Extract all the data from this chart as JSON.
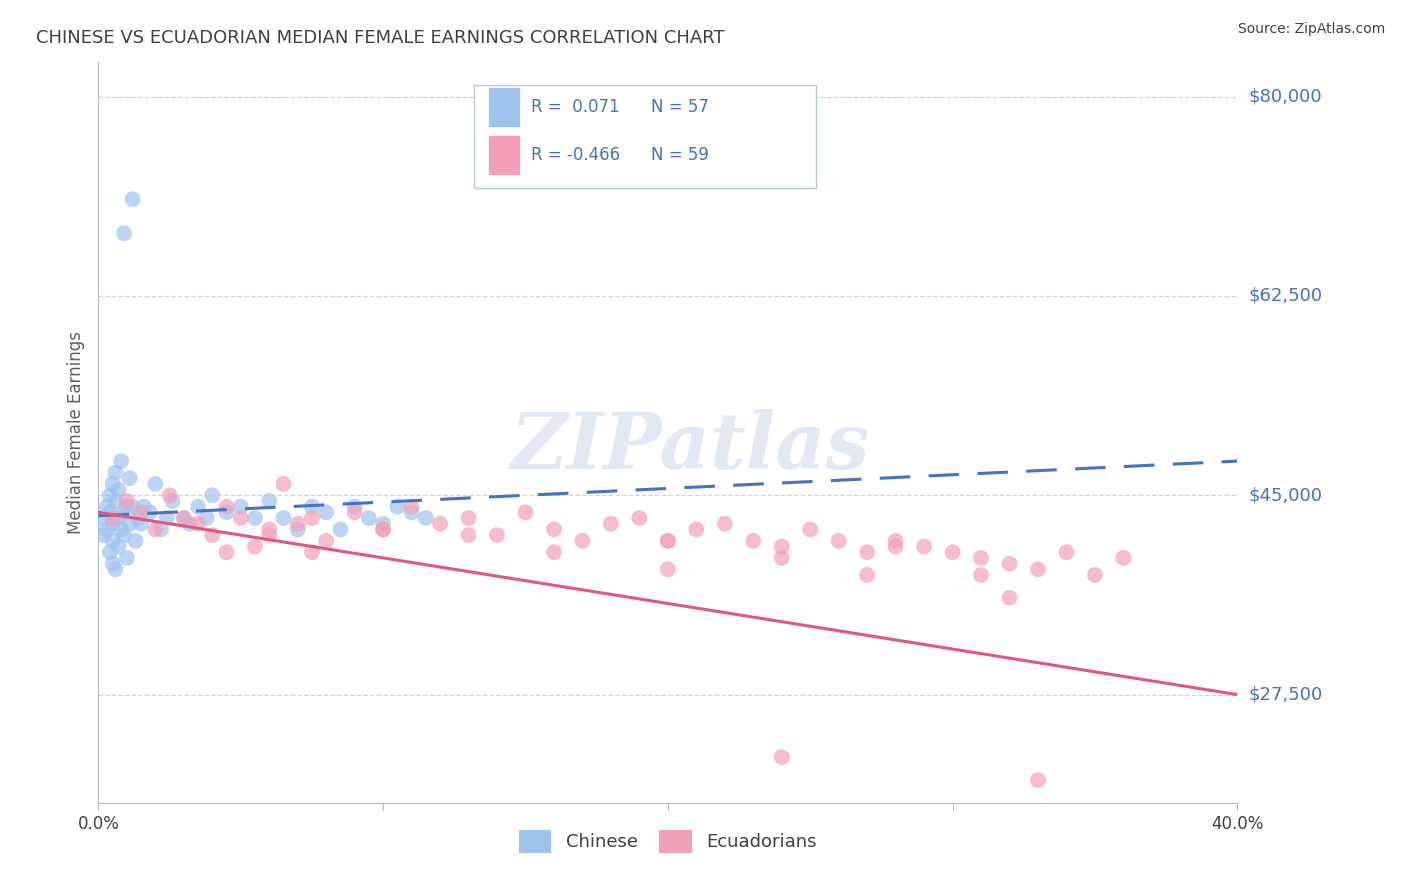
{
  "title": "CHINESE VS ECUADORIAN MEDIAN FEMALE EARNINGS CORRELATION CHART",
  "source": "Source: ZipAtlas.com",
  "ylabel": "Median Female Earnings",
  "x_min": 0.0,
  "x_max": 0.4,
  "y_min": 18000,
  "y_max": 83000,
  "yticks": [
    27500,
    45000,
    62500,
    80000
  ],
  "ytick_labels": [
    "$27,500",
    "$45,000",
    "$62,500",
    "$80,000"
  ],
  "xticks": [
    0.0,
    0.1,
    0.2,
    0.3,
    0.4
  ],
  "xtick_labels": [
    "0.0%",
    "",
    "",
    "",
    "40.0%"
  ],
  "chinese_color": "#a0c4f0",
  "ecuadorian_color": "#f4a0b8",
  "trend_chinese_color": "#4472c4",
  "trend_ecuadorian_color": "#e05880",
  "watermark": "ZIPatlas",
  "background_color": "#ffffff",
  "grid_color": "#c8d4e8",
  "title_color": "#404040",
  "right_label_color": "#4472c4",
  "source_color": "#404040",
  "ylabel_color": "#606060",
  "ch_trend_x0": 0.0,
  "ch_trend_y0": 43200,
  "ch_trend_x1": 0.4,
  "ch_trend_y1": 48000,
  "ec_trend_x0": 0.0,
  "ec_trend_y0": 43500,
  "ec_trend_x1": 0.4,
  "ec_trend_y1": 27500,
  "legend_r1": "R =  0.071",
  "legend_n1": "N = 57",
  "legend_r2": "R = -0.466",
  "legend_n2": "N = 59",
  "legend_label1": "Chinese",
  "legend_label2": "Ecuadorians",
  "chinese_x": [
    0.001,
    0.002,
    0.003,
    0.003,
    0.004,
    0.004,
    0.004,
    0.005,
    0.005,
    0.005,
    0.005,
    0.006,
    0.006,
    0.006,
    0.007,
    0.007,
    0.007,
    0.008,
    0.008,
    0.009,
    0.009,
    0.01,
    0.01,
    0.011,
    0.011,
    0.012,
    0.013,
    0.014,
    0.015,
    0.016,
    0.018,
    0.02,
    0.022,
    0.024,
    0.026,
    0.03,
    0.032,
    0.035,
    0.038,
    0.04,
    0.045,
    0.05,
    0.055,
    0.06,
    0.065,
    0.07,
    0.075,
    0.08,
    0.085,
    0.09,
    0.095,
    0.1,
    0.105,
    0.11,
    0.115,
    0.012,
    0.009
  ],
  "chinese_y": [
    43000,
    41500,
    42000,
    44000,
    43500,
    40000,
    45000,
    42500,
    39000,
    46000,
    41000,
    44500,
    38500,
    47000,
    43000,
    40500,
    45500,
    42000,
    48000,
    41500,
    43500,
    44000,
    39500,
    46500,
    42500,
    44000,
    41000,
    43000,
    42500,
    44000,
    43500,
    46000,
    42000,
    43000,
    44500,
    43000,
    42500,
    44000,
    43000,
    45000,
    43500,
    44000,
    43000,
    44500,
    43000,
    42000,
    44000,
    43500,
    42000,
    44000,
    43000,
    42500,
    44000,
    43500,
    43000,
    71000,
    68000
  ],
  "ecuadorian_x": [
    0.005,
    0.01,
    0.015,
    0.02,
    0.025,
    0.03,
    0.035,
    0.04,
    0.045,
    0.05,
    0.055,
    0.06,
    0.065,
    0.07,
    0.075,
    0.08,
    0.09,
    0.1,
    0.11,
    0.12,
    0.13,
    0.14,
    0.15,
    0.16,
    0.17,
    0.18,
    0.19,
    0.2,
    0.21,
    0.22,
    0.23,
    0.24,
    0.25,
    0.26,
    0.27,
    0.28,
    0.29,
    0.3,
    0.31,
    0.32,
    0.33,
    0.34,
    0.35,
    0.36,
    0.045,
    0.06,
    0.075,
    0.1,
    0.13,
    0.16,
    0.2,
    0.24,
    0.28,
    0.31,
    0.24,
    0.32,
    0.33,
    0.27,
    0.2
  ],
  "ecuadorian_y": [
    43000,
    44500,
    43500,
    42000,
    45000,
    43000,
    42500,
    41500,
    44000,
    43000,
    40500,
    42000,
    46000,
    42500,
    43000,
    41000,
    43500,
    42000,
    44000,
    42500,
    43000,
    41500,
    43500,
    42000,
    41000,
    42500,
    43000,
    41000,
    42000,
    42500,
    41000,
    40500,
    42000,
    41000,
    40000,
    41000,
    40500,
    40000,
    39500,
    39000,
    38500,
    40000,
    38000,
    39500,
    40000,
    41500,
    40000,
    42000,
    41500,
    40000,
    41000,
    39500,
    40500,
    38000,
    22000,
    36000,
    20000,
    38000,
    38500
  ]
}
